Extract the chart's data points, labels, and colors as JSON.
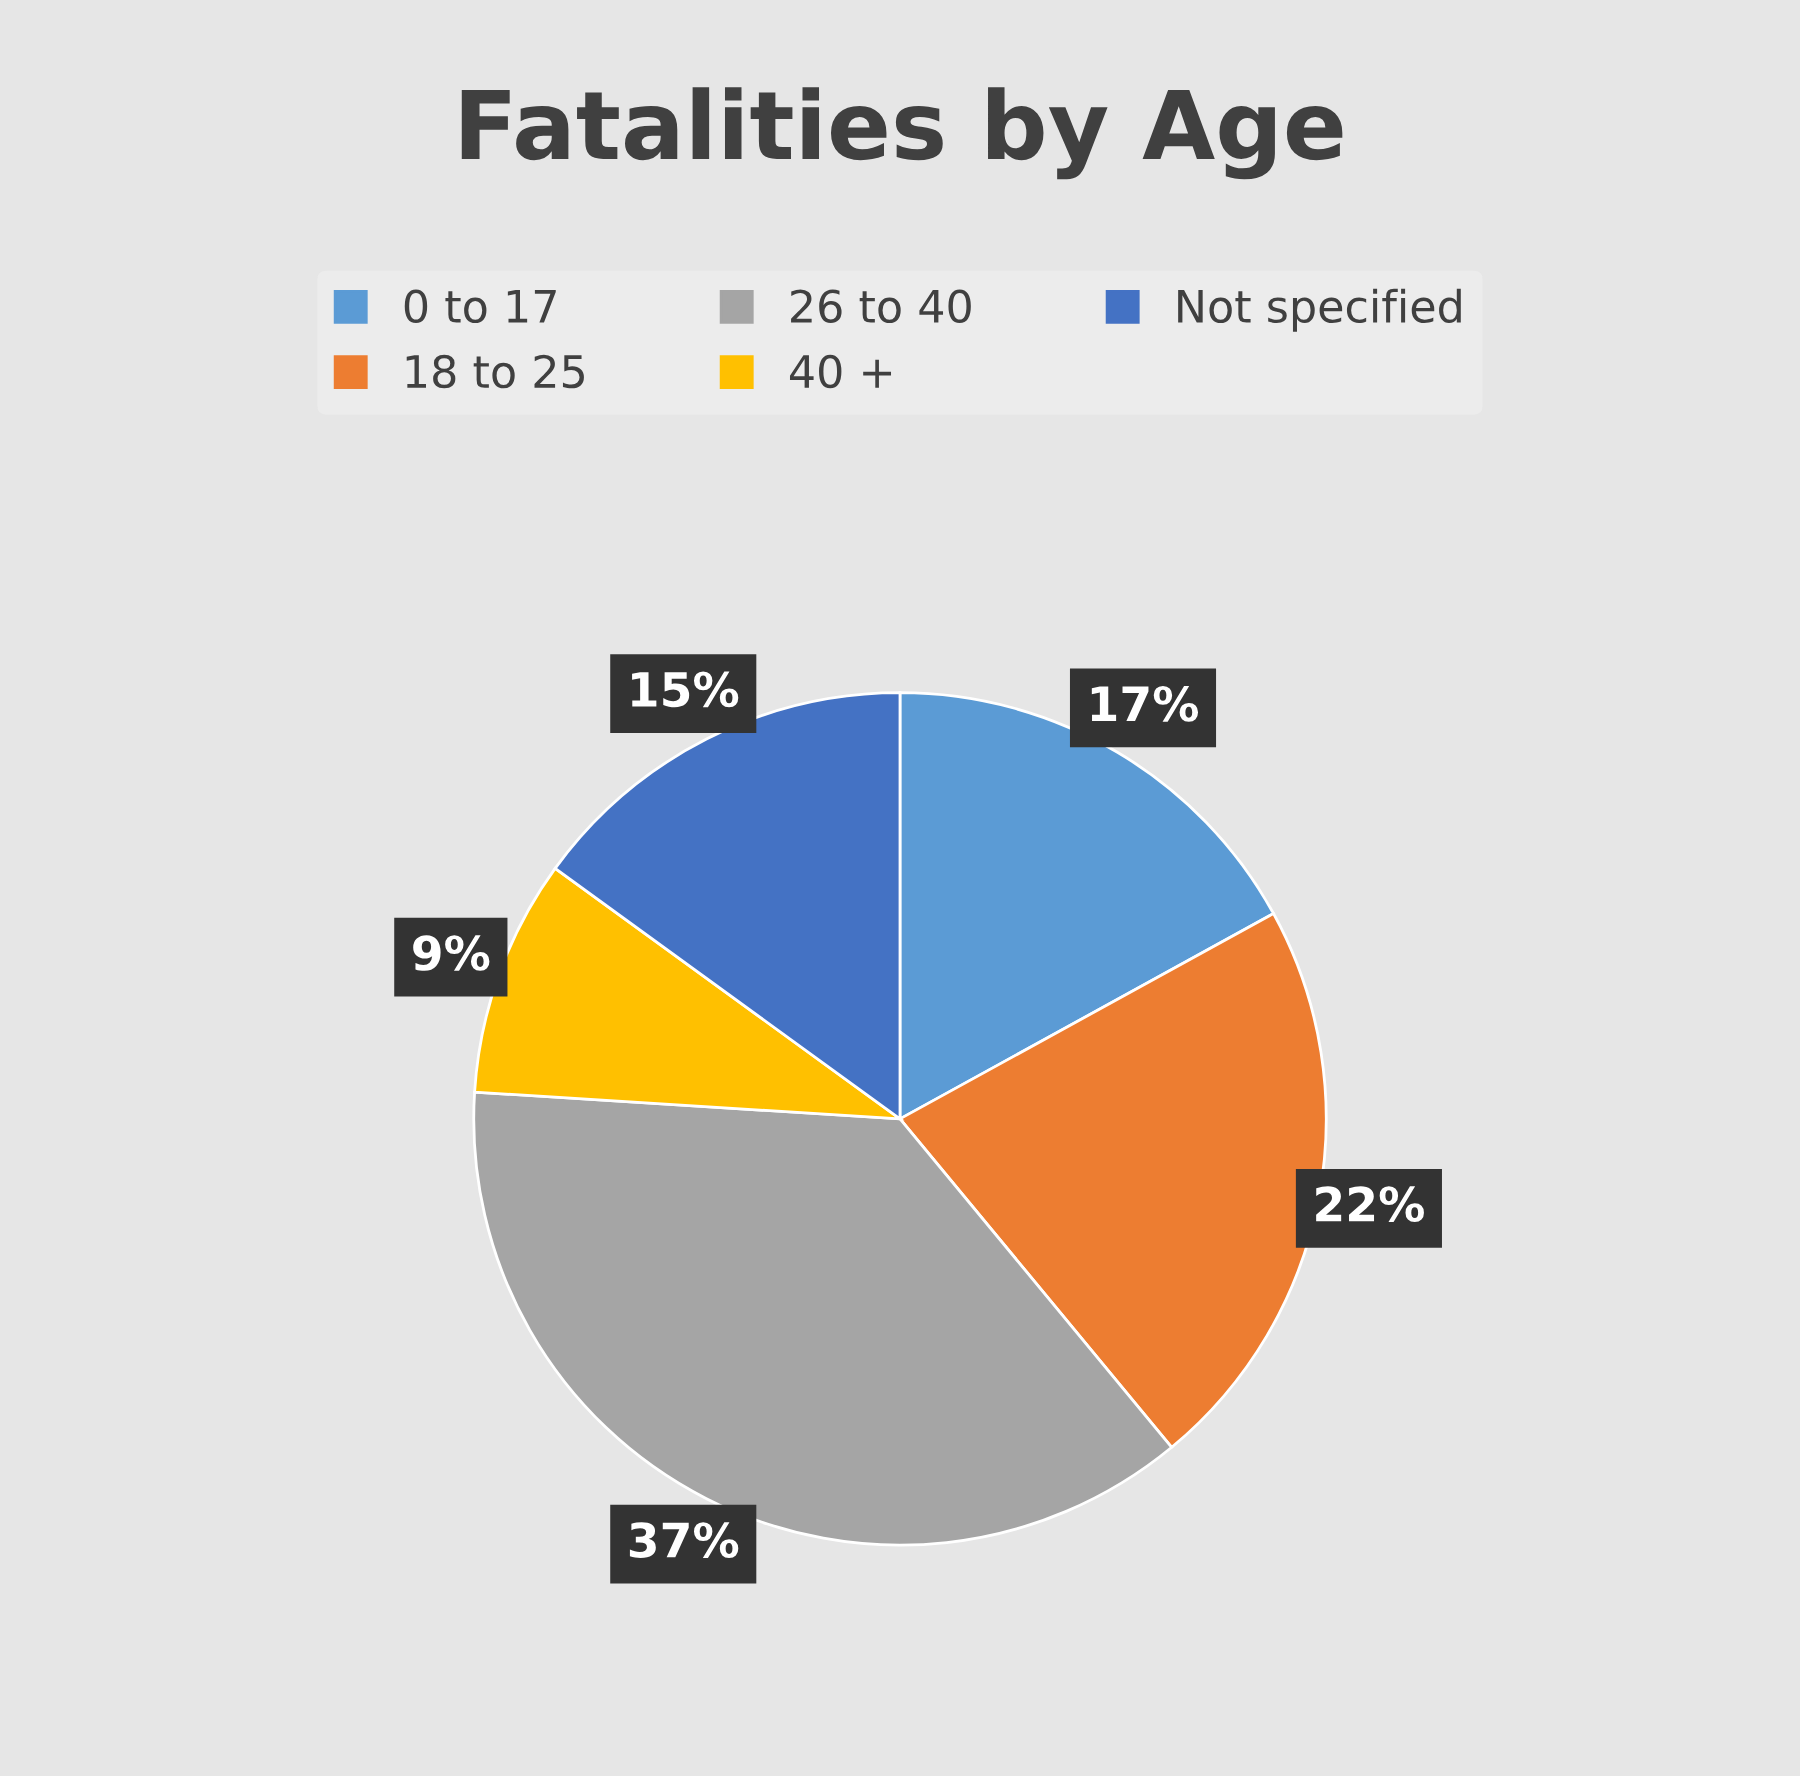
{
  "chart_data": {
    "type": "pie",
    "title": "Fatalities by Age",
    "categories": [
      "0 to 17",
      "18 to 25",
      "26 to 40",
      "40 +",
      "Not specified"
    ],
    "values": [
      17,
      22,
      37,
      9,
      15
    ],
    "colors": [
      "#5b9bd5",
      "#ed7d31",
      "#a5a5a5",
      "#ffc000",
      "#4472c4"
    ],
    "value_labels": [
      "17%",
      "22%",
      "37%",
      "9%",
      "15%"
    ],
    "legend": "top"
  }
}
